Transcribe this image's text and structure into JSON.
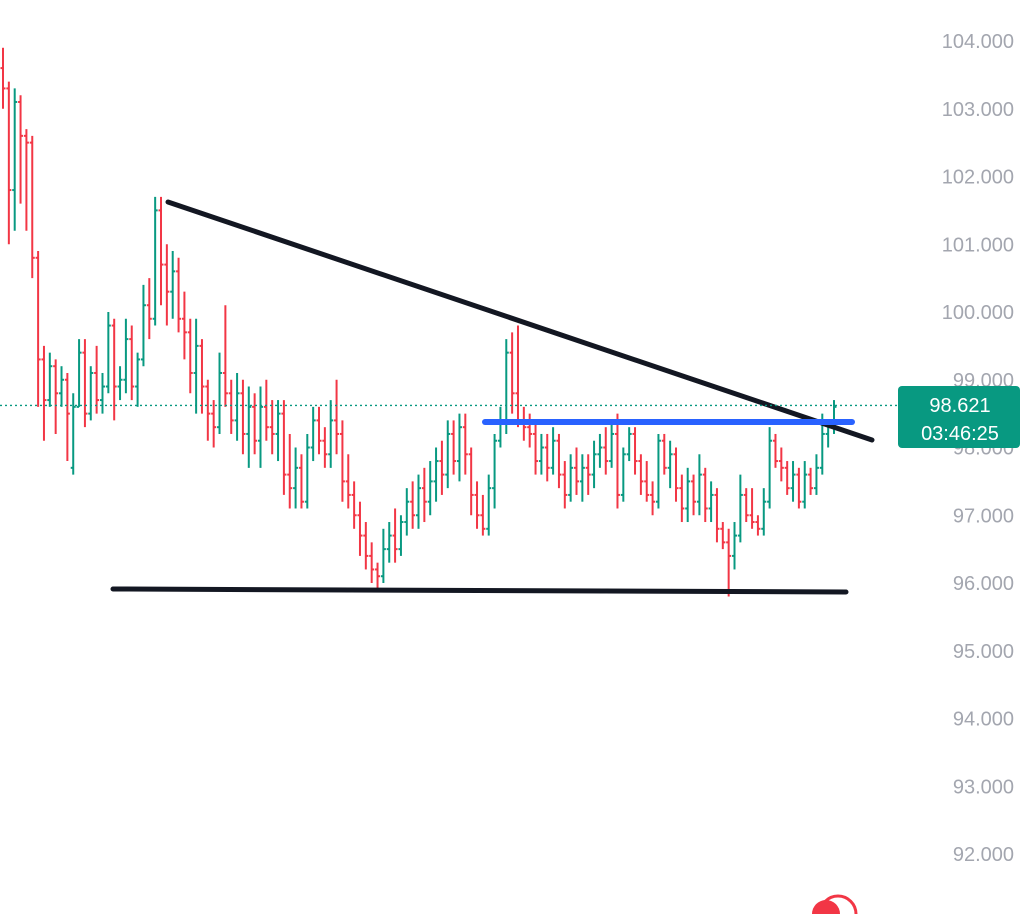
{
  "chart_data": {
    "type": "ohlc",
    "ylim": [
      91.6,
      104.6
    ],
    "y_ticks": [
      "104.000",
      "103.000",
      "102.000",
      "101.000",
      "100.000",
      "99.000",
      "98.000",
      "97.000",
      "96.000",
      "95.000",
      "94.000",
      "93.000",
      "92.000"
    ],
    "y_tick_values": [
      104,
      103,
      102,
      101,
      100,
      99,
      98,
      97,
      96,
      95,
      94,
      93,
      92
    ],
    "grid": false,
    "last_price": {
      "value": 98.621,
      "label": "98.621",
      "countdown": "03:46:25"
    },
    "colors": {
      "up": "#089981",
      "down": "#f23645",
      "trendline": "#131722",
      "resistance": "#2962ff",
      "tick_text": "#a3a6af",
      "price_tag": "#089981"
    },
    "bars": [
      [
        103.6,
        103.9,
        103.0,
        103.3
      ],
      [
        103.3,
        103.4,
        101.0,
        101.8
      ],
      [
        101.8,
        103.3,
        101.2,
        103.1
      ],
      [
        103.1,
        103.2,
        101.6,
        102.6
      ],
      [
        102.6,
        102.7,
        101.2,
        102.5
      ],
      [
        102.5,
        102.6,
        100.5,
        100.8
      ],
      [
        100.8,
        100.9,
        98.6,
        99.3
      ],
      [
        99.3,
        99.5,
        98.1,
        98.7
      ],
      [
        98.7,
        99.4,
        98.6,
        99.2
      ],
      [
        99.2,
        99.3,
        98.2,
        98.8
      ],
      [
        98.8,
        99.2,
        98.6,
        99.0
      ],
      [
        99.0,
        99.1,
        97.8,
        98.5
      ],
      [
        97.7,
        98.8,
        97.6,
        98.6
      ],
      [
        98.6,
        99.6,
        98.6,
        99.4
      ],
      [
        99.4,
        99.6,
        98.3,
        98.5
      ],
      [
        98.5,
        99.2,
        98.4,
        99.1
      ],
      [
        99.1,
        99.5,
        98.5,
        98.7
      ],
      [
        98.7,
        99.1,
        98.5,
        98.9
      ],
      [
        98.9,
        100.0,
        98.8,
        99.8
      ],
      [
        99.8,
        99.9,
        98.4,
        98.9
      ],
      [
        98.9,
        99.2,
        98.7,
        99.0
      ],
      [
        99.0,
        99.9,
        98.8,
        99.6
      ],
      [
        99.6,
        99.8,
        98.7,
        98.9
      ],
      [
        98.9,
        99.4,
        98.6,
        99.3
      ],
      [
        99.3,
        100.4,
        99.2,
        100.1
      ],
      [
        100.1,
        100.5,
        99.6,
        99.9
      ],
      [
        99.9,
        101.7,
        99.8,
        101.5
      ],
      [
        101.5,
        101.7,
        100.1,
        100.7
      ],
      [
        100.7,
        101.0,
        99.8,
        100.3
      ],
      [
        100.3,
        100.9,
        99.9,
        100.6
      ],
      [
        100.6,
        100.8,
        99.7,
        99.9
      ],
      [
        99.9,
        100.3,
        99.3,
        99.7
      ],
      [
        99.7,
        99.9,
        98.8,
        99.1
      ],
      [
        99.1,
        99.9,
        98.5,
        99.5
      ],
      [
        99.5,
        99.6,
        98.5,
        98.9
      ],
      [
        98.9,
        99.0,
        98.1,
        98.5
      ],
      [
        98.5,
        98.7,
        98.0,
        98.3
      ],
      [
        98.3,
        99.4,
        98.2,
        99.1
      ],
      [
        99.1,
        100.1,
        98.6,
        98.8
      ],
      [
        98.8,
        99.0,
        98.2,
        98.4
      ],
      [
        98.4,
        99.1,
        98.1,
        98.8
      ],
      [
        98.8,
        99.0,
        97.9,
        98.2
      ],
      [
        98.2,
        98.9,
        97.7,
        98.6
      ],
      [
        98.6,
        98.8,
        97.9,
        98.1
      ],
      [
        98.1,
        98.9,
        97.7,
        98.6
      ],
      [
        98.6,
        99.0,
        98.1,
        98.3
      ],
      [
        98.3,
        98.7,
        97.9,
        98.2
      ],
      [
        98.2,
        98.7,
        97.8,
        98.5
      ],
      [
        98.5,
        98.7,
        97.3,
        97.6
      ],
      [
        97.6,
        98.2,
        97.1,
        97.4
      ],
      [
        97.4,
        98.0,
        97.1,
        97.7
      ],
      [
        97.7,
        97.9,
        97.1,
        97.2
      ],
      [
        97.2,
        98.2,
        97.1,
        98.0
      ],
      [
        98.0,
        98.6,
        97.8,
        98.4
      ],
      [
        98.4,
        98.6,
        97.9,
        98.1
      ],
      [
        98.1,
        98.3,
        97.7,
        97.9
      ],
      [
        97.9,
        98.7,
        97.7,
        98.4
      ],
      [
        98.4,
        99.0,
        97.9,
        98.2
      ],
      [
        98.2,
        98.4,
        97.2,
        97.5
      ],
      [
        97.5,
        97.9,
        97.1,
        97.3
      ],
      [
        97.3,
        97.5,
        96.8,
        97.0
      ],
      [
        97.0,
        97.2,
        96.4,
        96.7
      ],
      [
        96.7,
        96.9,
        96.2,
        96.4
      ],
      [
        96.4,
        96.6,
        96.0,
        96.2
      ],
      [
        96.2,
        96.3,
        95.9,
        96.1
      ],
      [
        96.1,
        96.8,
        96.0,
        96.5
      ],
      [
        96.5,
        96.9,
        96.3,
        96.7
      ],
      [
        96.7,
        97.1,
        96.3,
        96.5
      ],
      [
        96.5,
        97.0,
        96.4,
        96.9
      ],
      [
        96.9,
        97.4,
        96.7,
        97.2
      ],
      [
        97.2,
        97.5,
        96.8,
        97.0
      ],
      [
        97.0,
        97.6,
        96.8,
        97.4
      ],
      [
        97.4,
        97.7,
        96.9,
        97.2
      ],
      [
        97.2,
        97.8,
        97.0,
        97.5
      ],
      [
        97.5,
        98.0,
        97.2,
        97.8
      ],
      [
        97.8,
        98.1,
        97.3,
        97.6
      ],
      [
        97.6,
        98.4,
        97.4,
        98.2
      ],
      [
        98.2,
        98.4,
        97.6,
        97.8
      ],
      [
        97.8,
        98.5,
        97.5,
        98.3
      ],
      [
        98.3,
        98.5,
        97.6,
        97.9
      ],
      [
        97.9,
        98.0,
        97.0,
        97.3
      ],
      [
        97.3,
        97.5,
        96.8,
        97.0
      ],
      [
        97.0,
        97.3,
        96.7,
        96.8
      ],
      [
        96.8,
        97.6,
        96.7,
        97.4
      ],
      [
        97.4,
        98.2,
        97.1,
        98.1
      ],
      [
        98.1,
        98.6,
        98.0,
        98.4
      ],
      [
        98.4,
        99.6,
        98.2,
        99.4
      ],
      [
        99.4,
        99.7,
        98.5,
        98.8
      ],
      [
        98.8,
        99.8,
        98.3,
        98.4
      ],
      [
        98.4,
        98.6,
        98.1,
        98.3
      ],
      [
        98.3,
        98.5,
        98.0,
        98.2
      ],
      [
        98.2,
        98.4,
        97.6,
        97.8
      ],
      [
        97.8,
        98.2,
        97.6,
        98.0
      ],
      [
        98.0,
        98.2,
        97.5,
        97.7
      ],
      [
        97.7,
        98.3,
        97.6,
        98.1
      ],
      [
        98.1,
        98.2,
        97.4,
        97.6
      ],
      [
        97.6,
        97.8,
        97.1,
        97.3
      ],
      [
        97.3,
        97.9,
        97.2,
        97.7
      ],
      [
        97.7,
        98.0,
        97.3,
        97.5
      ],
      [
        97.5,
        97.9,
        97.2,
        97.7
      ],
      [
        97.7,
        97.9,
        97.3,
        97.6
      ],
      [
        97.6,
        98.1,
        97.4,
        97.9
      ],
      [
        97.9,
        98.2,
        97.7,
        98.0
      ],
      [
        98.0,
        98.3,
        97.6,
        97.8
      ],
      [
        97.8,
        98.4,
        97.7,
        98.2
      ],
      [
        98.2,
        98.5,
        97.1,
        97.3
      ],
      [
        97.3,
        98.0,
        97.2,
        97.9
      ],
      [
        97.9,
        98.3,
        97.8,
        98.2
      ],
      [
        98.2,
        98.3,
        97.6,
        97.8
      ],
      [
        97.8,
        97.9,
        97.3,
        97.5
      ],
      [
        97.5,
        97.8,
        97.2,
        97.3
      ],
      [
        97.3,
        97.5,
        97.0,
        97.2
      ],
      [
        97.2,
        98.2,
        97.1,
        98.1
      ],
      [
        98.1,
        98.2,
        97.6,
        97.7
      ],
      [
        97.7,
        98.1,
        97.4,
        97.9
      ],
      [
        97.9,
        98.0,
        97.2,
        97.4
      ],
      [
        97.4,
        97.6,
        96.9,
        97.1
      ],
      [
        97.1,
        97.7,
        96.9,
        97.5
      ],
      [
        97.5,
        97.6,
        97.0,
        97.2
      ],
      [
        97.2,
        97.9,
        97.0,
        97.6
      ],
      [
        97.6,
        97.7,
        96.9,
        97.1
      ],
      [
        97.1,
        97.5,
        96.9,
        97.3
      ],
      [
        97.3,
        97.4,
        96.6,
        96.8
      ],
      [
        96.8,
        96.9,
        96.5,
        96.6
      ],
      [
        96.6,
        96.8,
        95.8,
        96.4
      ],
      [
        96.4,
        96.9,
        96.2,
        96.7
      ],
      [
        96.7,
        97.6,
        96.6,
        97.3
      ],
      [
        97.3,
        97.4,
        96.9,
        97.0
      ],
      [
        97.0,
        97.4,
        96.8,
        96.9
      ],
      [
        96.9,
        97.0,
        96.7,
        96.8
      ],
      [
        96.8,
        97.4,
        96.7,
        97.2
      ],
      [
        97.2,
        98.3,
        97.1,
        98.1
      ],
      [
        98.1,
        98.2,
        97.7,
        97.8
      ],
      [
        97.8,
        98.0,
        97.5,
        97.7
      ],
      [
        97.7,
        97.8,
        97.3,
        97.4
      ],
      [
        97.4,
        97.8,
        97.2,
        97.6
      ],
      [
        97.6,
        97.7,
        97.1,
        97.2
      ],
      [
        97.2,
        97.8,
        97.1,
        97.6
      ],
      [
        97.6,
        97.7,
        97.3,
        97.4
      ],
      [
        97.4,
        97.9,
        97.3,
        97.7
      ],
      [
        97.7,
        98.5,
        97.6,
        98.2
      ],
      [
        98.2,
        98.4,
        98.0,
        98.3
      ],
      [
        98.3,
        98.7,
        98.2,
        98.6
      ]
    ]
  }
}
